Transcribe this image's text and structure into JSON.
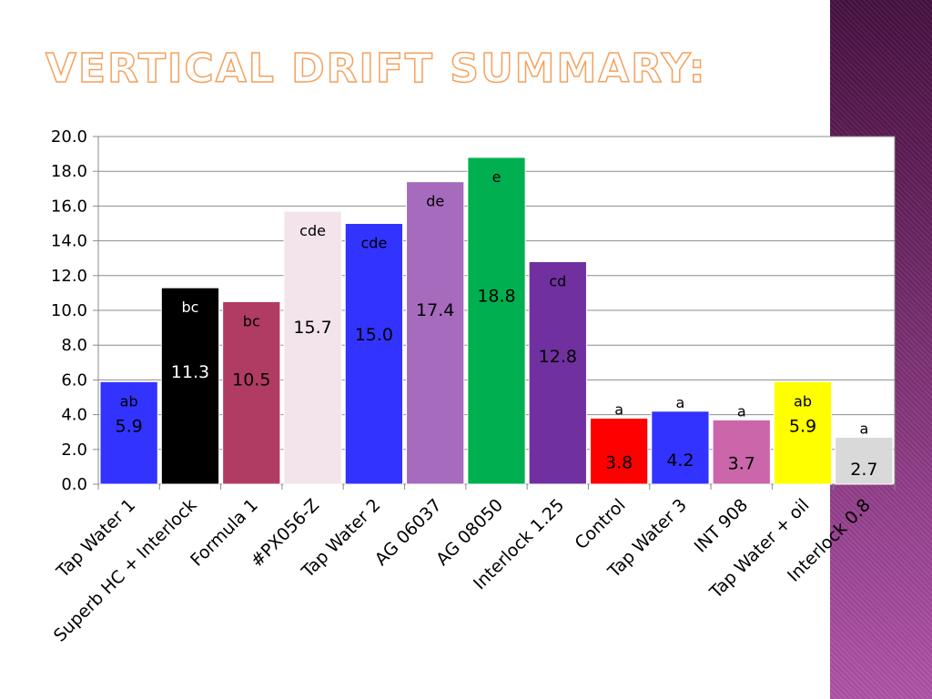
{
  "title": "Vertical Drift Summary:",
  "chart_data": {
    "type": "bar",
    "categories": [
      "Tap Water 1",
      "Superb HC + Interlock",
      "Formula 1",
      "#PX056-Z",
      "Tap Water 2",
      "AG 06037",
      "AG 08050",
      "Interlock 1.25",
      "Control",
      "Tap Water 3",
      "INT 908",
      "Tap Water + oil",
      "Interlock 0.8"
    ],
    "values": [
      5.9,
      11.3,
      10.5,
      15.7,
      15.0,
      17.4,
      18.8,
      12.8,
      3.8,
      4.2,
      3.7,
      5.9,
      2.7
    ],
    "value_labels": [
      "5.9",
      "11.3",
      "10.5",
      "15.7",
      "15.0",
      "17.4",
      "18.8",
      "12.8",
      "3.8",
      "4.2",
      "3.7",
      "5.9",
      "2.7"
    ],
    "group_labels": [
      "ab",
      "bc",
      "bc",
      "cde",
      "cde",
      "de",
      "e",
      "cd",
      "a",
      "a",
      "a",
      "ab",
      "a"
    ],
    "colors": [
      "#3333ff",
      "#000000",
      "#b13c63",
      "#f2e4ea",
      "#3333ff",
      "#a66bbd",
      "#00b050",
      "#7030a0",
      "#ff0000",
      "#3333ff",
      "#cc66aa",
      "#ffff00",
      "#d9d9d9"
    ],
    "ylim": [
      0,
      20
    ],
    "yticks": [
      "0.0",
      "2.0",
      "4.0",
      "6.0",
      "8.0",
      "10.0",
      "12.0",
      "14.0",
      "16.0",
      "18.0",
      "20.0"
    ],
    "grid": true,
    "xlabel": "",
    "ylabel": ""
  }
}
